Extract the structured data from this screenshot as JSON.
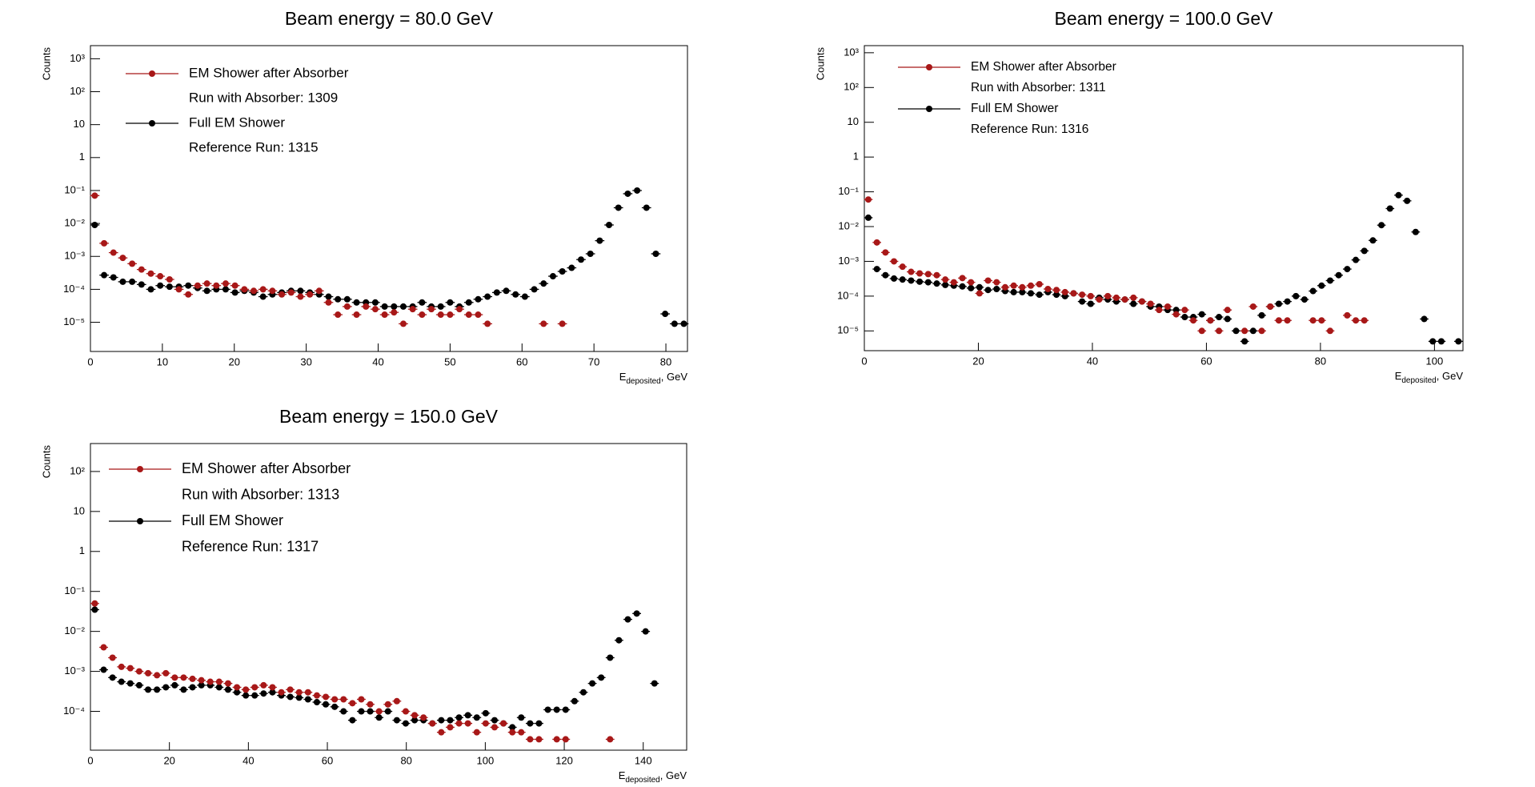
{
  "chart_data": [
    {
      "type": "scatter",
      "title": "Beam energy = 80.0 GeV",
      "ylabel": "Counts",
      "xlabel": {
        "main": "E",
        "sub": "deposited",
        "rest": ", GeV"
      },
      "xlim": [
        0,
        83
      ],
      "xticks": [
        0,
        10,
        20,
        30,
        40,
        50,
        60,
        70,
        80
      ],
      "ylog": true,
      "ylim": [
        1.3e-06,
        2500
      ],
      "yticks": [
        {
          "value": 1e-05,
          "label": "10⁻⁵"
        },
        {
          "value": 0.0001,
          "label": "10⁻⁴"
        },
        {
          "value": 0.001,
          "label": "10⁻³"
        },
        {
          "value": 0.01,
          "label": "10⁻²"
        },
        {
          "value": 0.1,
          "label": "10⁻¹"
        },
        1,
        10,
        {
          "value": 100,
          "label": "10²"
        },
        {
          "value": 1000,
          "label": "10³"
        }
      ],
      "xerr": 0.65,
      "legend": "upper left",
      "series": [
        {
          "name": "EM Shower after Absorber",
          "legend_note": "Run with Absorber: 1309",
          "color": "#a81818",
          "x": [
            0.6,
            1.9,
            3.2,
            4.5,
            5.8,
            7.1,
            8.4,
            9.7,
            11,
            12.3,
            13.6,
            14.9,
            16.2,
            17.5,
            18.8,
            20.1,
            21.4,
            22.7,
            24,
            25.3,
            26.6,
            27.9,
            29.2,
            30.5,
            31.8,
            33.1,
            34.4,
            35.7,
            37,
            38.3,
            39.6,
            40.9,
            42.2,
            43.5,
            44.8,
            46.1,
            47.4,
            48.7,
            50,
            51.3,
            52.6,
            53.9,
            55.2,
            63,
            65.6
          ],
          "values": [
            0.07,
            0.0025,
            0.0013,
            0.0009,
            0.0006,
            0.0004,
            0.0003,
            0.00025,
            0.0002,
            0.0001,
            7e-05,
            0.00013,
            0.00015,
            0.00013,
            0.00015,
            0.00013,
            0.0001,
            9e-05,
            0.0001,
            9e-05,
            7e-05,
            8e-05,
            6e-05,
            7e-05,
            9e-05,
            4e-05,
            1.7e-05,
            3e-05,
            1.7e-05,
            3e-05,
            2.5e-05,
            1.7e-05,
            2e-05,
            9e-06,
            2.5e-05,
            1.7e-05,
            2.5e-05,
            1.7e-05,
            1.7e-05,
            2.5e-05,
            1.7e-05,
            1.7e-05,
            9e-06,
            9e-06,
            9e-06
          ]
        },
        {
          "name": "Full EM Shower",
          "legend_note": "Reference Run: 1315",
          "color": "#000000",
          "x": [
            0.6,
            1.9,
            3.2,
            4.5,
            5.8,
            7.1,
            8.4,
            9.7,
            11,
            12.3,
            13.6,
            14.9,
            16.2,
            17.5,
            18.8,
            20.1,
            21.4,
            22.7,
            24,
            25.3,
            26.6,
            27.9,
            29.2,
            30.5,
            31.8,
            33.1,
            34.4,
            35.7,
            37,
            38.3,
            39.6,
            40.9,
            42.2,
            43.5,
            44.8,
            46.1,
            47.4,
            48.7,
            50,
            51.3,
            52.6,
            53.9,
            55.2,
            56.5,
            57.8,
            59.1,
            60.4,
            61.7,
            63,
            64.3,
            65.6,
            66.9,
            68.2,
            69.5,
            70.8,
            72.1,
            73.4,
            74.7,
            76,
            77.3,
            78.6,
            79.9,
            81.2,
            82.5
          ],
          "values": [
            0.009,
            0.00027,
            0.00023,
            0.00017,
            0.00017,
            0.00014,
            0.0001,
            0.00013,
            0.00012,
            0.00012,
            0.00013,
            0.00011,
            9e-05,
            0.0001,
            0.0001,
            8e-05,
            9e-05,
            8e-05,
            6e-05,
            7e-05,
            8e-05,
            9e-05,
            9e-05,
            8e-05,
            7e-05,
            6e-05,
            5e-05,
            5e-05,
            4e-05,
            4e-05,
            4e-05,
            3e-05,
            3e-05,
            3e-05,
            3e-05,
            4e-05,
            3e-05,
            3e-05,
            4e-05,
            3e-05,
            4e-05,
            5e-05,
            6e-05,
            8e-05,
            9e-05,
            7e-05,
            6e-05,
            0.0001,
            0.00015,
            0.00025,
            0.00035,
            0.00045,
            0.0008,
            0.0012,
            0.003,
            0.009,
            0.03,
            0.08,
            0.1,
            0.03,
            0.0012,
            1.8e-05,
            9e-06,
            9e-06
          ]
        }
      ]
    },
    {
      "type": "scatter",
      "title": "Beam energy = 100.0 GeV",
      "ylabel": "Counts",
      "xlabel": {
        "main": "E",
        "sub": "deposited",
        "rest": ", GeV"
      },
      "xlim": [
        0,
        105
      ],
      "xticks": [
        0,
        20,
        40,
        60,
        80,
        100
      ],
      "ylog": true,
      "ylim": [
        2.7e-06,
        1600
      ],
      "yticks": [
        {
          "value": 1e-05,
          "label": "10⁻⁵"
        },
        {
          "value": 0.0001,
          "label": "10⁻⁴"
        },
        {
          "value": 0.001,
          "label": "10⁻³"
        },
        {
          "value": 0.01,
          "label": "10⁻²"
        },
        {
          "value": 0.1,
          "label": "10⁻¹"
        },
        1,
        10,
        {
          "value": 100,
          "label": "10²"
        },
        {
          "value": 1000,
          "label": "10³"
        }
      ],
      "xerr": 0.75,
      "legend": "upper left",
      "series": [
        {
          "name": "EM Shower after Absorber",
          "legend_note": "Run with Absorber: 1311",
          "color": "#a81818",
          "x": [
            0.7,
            2.2,
            3.7,
            5.2,
            6.7,
            8.2,
            9.7,
            11.2,
            12.7,
            14.2,
            15.7,
            17.2,
            18.7,
            20.2,
            21.7,
            23.2,
            24.7,
            26.2,
            27.7,
            29.2,
            30.7,
            32.2,
            33.7,
            35.2,
            36.7,
            38.2,
            39.7,
            41.2,
            42.7,
            44.2,
            45.7,
            47.2,
            48.7,
            50.2,
            51.7,
            53.2,
            54.7,
            56.2,
            57.7,
            59.2,
            60.7,
            62.2,
            63.7,
            66.7,
            68.2,
            69.7,
            71.2,
            72.7,
            74.2,
            78.7,
            80.2,
            81.7,
            84.7,
            86.2,
            87.7
          ],
          "values": [
            0.06,
            0.0035,
            0.0018,
            0.001,
            0.0007,
            0.0005,
            0.00045,
            0.00043,
            0.0004,
            0.0003,
            0.00025,
            0.00033,
            0.00025,
            0.00012,
            0.00028,
            0.00025,
            0.00018,
            0.0002,
            0.00018,
            0.0002,
            0.00022,
            0.00016,
            0.00015,
            0.00013,
            0.00012,
            0.00011,
            0.0001,
            8e-05,
            0.0001,
            9e-05,
            8e-05,
            9e-05,
            7e-05,
            6e-05,
            4e-05,
            5e-05,
            3e-05,
            4e-05,
            2e-05,
            1e-05,
            2e-05,
            1e-05,
            4e-05,
            1e-05,
            5e-05,
            1e-05,
            5e-05,
            2e-05,
            2e-05,
            2e-05,
            2e-05,
            1e-05,
            2.8e-05,
            2e-05,
            2e-05
          ]
        },
        {
          "name": "Full EM Shower",
          "legend_note": "Reference Run: 1316",
          "color": "#000000",
          "x": [
            0.7,
            2.2,
            3.7,
            5.2,
            6.7,
            8.2,
            9.7,
            11.2,
            12.7,
            14.2,
            15.7,
            17.2,
            18.7,
            20.2,
            21.7,
            23.2,
            24.7,
            26.2,
            27.7,
            29.2,
            30.7,
            32.2,
            33.7,
            35.2,
            36.7,
            38.2,
            39.7,
            41.2,
            42.7,
            44.2,
            45.7,
            47.2,
            48.7,
            50.2,
            51.7,
            53.2,
            54.7,
            56.2,
            57.7,
            59.2,
            60.7,
            62.2,
            63.7,
            65.2,
            66.7,
            68.2,
            69.7,
            71.2,
            72.7,
            74.2,
            75.7,
            77.2,
            78.7,
            80.2,
            81.7,
            83.2,
            84.7,
            86.2,
            87.7,
            89.2,
            90.7,
            92.2,
            93.7,
            95.2,
            96.7,
            98.2,
            99.7,
            101.2,
            104.2
          ],
          "values": [
            0.018,
            0.0006,
            0.0004,
            0.00032,
            0.0003,
            0.00028,
            0.00026,
            0.00025,
            0.00023,
            0.00021,
            0.0002,
            0.00019,
            0.00017,
            0.00018,
            0.00015,
            0.00016,
            0.00014,
            0.00013,
            0.00013,
            0.00012,
            0.00011,
            0.00013,
            0.00011,
            0.0001,
            0.00012,
            7e-05,
            6e-05,
            9e-05,
            8e-05,
            7e-05,
            8e-05,
            6e-05,
            7e-05,
            5e-05,
            5e-05,
            4e-05,
            4e-05,
            2.5e-05,
            2.5e-05,
            3e-05,
            2e-05,
            2.5e-05,
            2.2e-05,
            1e-05,
            5e-06,
            1e-05,
            2.8e-05,
            5e-05,
            6e-05,
            7e-05,
            0.0001,
            8e-05,
            0.00014,
            0.0002,
            0.00028,
            0.0004,
            0.0006,
            0.0011,
            0.002,
            0.004,
            0.011,
            0.033,
            0.08,
            0.055,
            0.007,
            2.2e-05,
            5e-06,
            5e-06,
            5e-06
          ]
        }
      ]
    },
    {
      "type": "scatter",
      "title": "Beam energy = 150.0 GeV",
      "ylabel": "Counts",
      "xlabel": {
        "main": "E",
        "sub": "deposited",
        "rest": ", GeV"
      },
      "xlim": [
        0,
        151
      ],
      "xticks": [
        0,
        20,
        40,
        60,
        80,
        100,
        120,
        140
      ],
      "ylog": true,
      "ylim": [
        1.07e-05,
        500
      ],
      "yticks": [
        {
          "value": 0.0001,
          "label": "10⁻⁴"
        },
        {
          "value": 0.001,
          "label": "10⁻³"
        },
        {
          "value": 0.01,
          "label": "10⁻²"
        },
        {
          "value": 0.1,
          "label": "10⁻¹"
        },
        1,
        10,
        {
          "value": 100,
          "label": "10²"
        }
      ],
      "xerr": 1.1,
      "legend": "upper left",
      "series": [
        {
          "name": "EM Shower after Absorber",
          "legend_note": "Run with Absorber: 1313",
          "color": "#a81818",
          "x": [
            1.1,
            3.35,
            5.6,
            7.85,
            10.1,
            12.35,
            14.6,
            16.85,
            19.1,
            21.35,
            23.6,
            25.85,
            28.1,
            30.35,
            32.6,
            34.85,
            37.1,
            39.35,
            41.6,
            43.85,
            46.1,
            48.35,
            50.6,
            52.85,
            55.1,
            57.35,
            59.6,
            61.85,
            64.1,
            66.35,
            68.6,
            70.85,
            73.1,
            75.35,
            77.6,
            79.85,
            82.1,
            84.35,
            86.6,
            88.85,
            91.1,
            93.35,
            95.6,
            97.85,
            100.1,
            102.35,
            104.6,
            106.85,
            109.1,
            111.35,
            113.6,
            118.1,
            120.35,
            131.6
          ],
          "values": [
            0.05,
            0.004,
            0.0022,
            0.0013,
            0.0012,
            0.001,
            0.0009,
            0.0008,
            0.0009,
            0.0007,
            0.0007,
            0.00065,
            0.0006,
            0.00055,
            0.00055,
            0.0005,
            0.0004,
            0.00035,
            0.0004,
            0.00045,
            0.0004,
            0.0003,
            0.00035,
            0.0003,
            0.0003,
            0.00025,
            0.00023,
            0.0002,
            0.0002,
            0.00016,
            0.0002,
            0.00015,
            0.0001,
            0.00015,
            0.00018,
            0.0001,
            8e-05,
            7e-05,
            5e-05,
            3e-05,
            4e-05,
            5e-05,
            5e-05,
            3e-05,
            5e-05,
            4e-05,
            5e-05,
            3e-05,
            3e-05,
            2e-05,
            2e-05,
            2e-05,
            2e-05,
            2e-05
          ]
        },
        {
          "name": "Full EM Shower",
          "legend_note": "Reference Run: 1317",
          "color": "#000000",
          "x": [
            1.1,
            3.35,
            5.6,
            7.85,
            10.1,
            12.35,
            14.6,
            16.85,
            19.1,
            21.35,
            23.6,
            25.85,
            28.1,
            30.35,
            32.6,
            34.85,
            37.1,
            39.35,
            41.6,
            43.85,
            46.1,
            48.35,
            50.6,
            52.85,
            55.1,
            57.35,
            59.6,
            61.85,
            64.1,
            66.35,
            68.6,
            70.85,
            73.1,
            75.35,
            77.6,
            79.85,
            82.1,
            84.35,
            86.6,
            88.85,
            91.1,
            93.35,
            95.6,
            97.85,
            100.1,
            102.35,
            104.6,
            106.85,
            109.1,
            111.35,
            113.6,
            115.85,
            118.1,
            120.35,
            122.6,
            124.85,
            127.1,
            129.35,
            131.6,
            133.85,
            136.1,
            138.35,
            140.6,
            142.85
          ],
          "values": [
            0.035,
            0.0011,
            0.0007,
            0.00055,
            0.0005,
            0.00045,
            0.00035,
            0.00035,
            0.0004,
            0.00045,
            0.00035,
            0.0004,
            0.00045,
            0.00045,
            0.0004,
            0.00035,
            0.0003,
            0.00025,
            0.00025,
            0.00028,
            0.0003,
            0.00025,
            0.00023,
            0.00022,
            0.0002,
            0.00017,
            0.00015,
            0.00013,
            0.0001,
            6e-05,
            0.0001,
            0.0001,
            7e-05,
            0.0001,
            6e-05,
            5e-05,
            6e-05,
            6e-05,
            5e-05,
            6e-05,
            6e-05,
            7e-05,
            8e-05,
            7e-05,
            9e-05,
            6e-05,
            5e-05,
            4e-05,
            7e-05,
            5e-05,
            5e-05,
            0.00011,
            0.00011,
            0.00011,
            0.00018,
            0.0003,
            0.0005,
            0.0007,
            0.0022,
            0.006,
            0.02,
            0.028,
            0.01,
            0.0005
          ]
        }
      ]
    }
  ]
}
